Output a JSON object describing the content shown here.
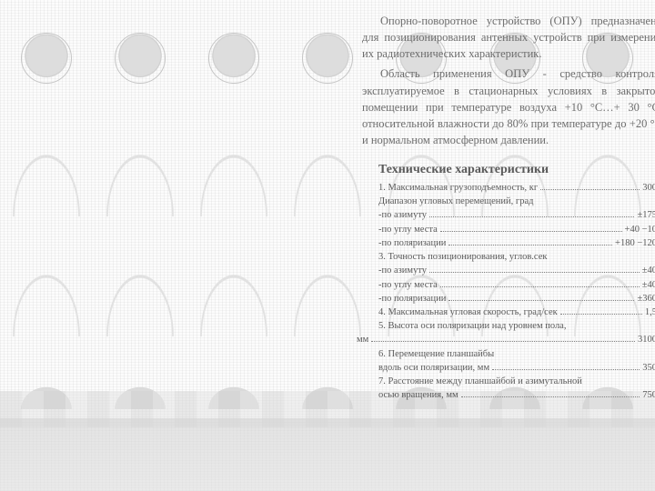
{
  "colors": {
    "body_text": "#6d6d6d",
    "spec_text": "#5a5a5a",
    "background": "#f5f5f5",
    "dot_leader": "#808080"
  },
  "intro": {
    "p1": "Опорно-поворотное устройство (ОПУ) предназначено для позиционирования антенных устройств при измерении их радиотехнических характеристик.",
    "p2": "Область применения ОПУ - средство контроля, эксплуатируемое в стационарных условиях в закрытом помещении при температуре воздуха +10 °С…+ 30 °С, относительной влажности до 80% при температуре до +20 °С и нормальном атмосферном давлении."
  },
  "specs": {
    "title": "Технические характеристики",
    "lines": [
      {
        "label": "1. Максимальная грузоподъемность, кг",
        "value": "300",
        "dots": true
      },
      {
        "label": "Диапазон угловых перемещений, град",
        "value": "",
        "dots": false
      },
      {
        "label": "-по азимуту",
        "value": "±175",
        "dots": true
      },
      {
        "label": "-по углу места",
        "value": "+40 −10",
        "dots": true
      },
      {
        "label": "-по поляризации",
        "value": "+180 −120",
        "dots": true
      },
      {
        "label": "3. Точность позиционирования, углов.сек",
        "value": "",
        "dots": false
      },
      {
        "label": "-по азимуту",
        "value": "±40",
        "dots": true
      },
      {
        "label": "-по углу места",
        "value": "±40",
        "dots": true
      },
      {
        "label": "-по поляризации",
        "value": "±360",
        "dots": true
      },
      {
        "label": "4. Максимальная угловая скорость, град/сек",
        "value": "1,5",
        "dots": true
      },
      {
        "label": "5. Высота оси поляризации над уровнем пола,",
        "value": "",
        "dots": false
      },
      {
        "label": "мм",
        "value": "3100",
        "dots": true,
        "shiftleft": true
      },
      {
        "label": "6. Перемещение планшайбы",
        "value": "",
        "dots": false
      },
      {
        "label": "вдоль оси поляризации, мм",
        "value": "350",
        "dots": true
      },
      {
        "label": "7. Расстояние между планшайбой и азимутальной",
        "value": "",
        "dots": false
      },
      {
        "label": "осью вращения, мм",
        "value": "750",
        "dots": true
      }
    ]
  }
}
